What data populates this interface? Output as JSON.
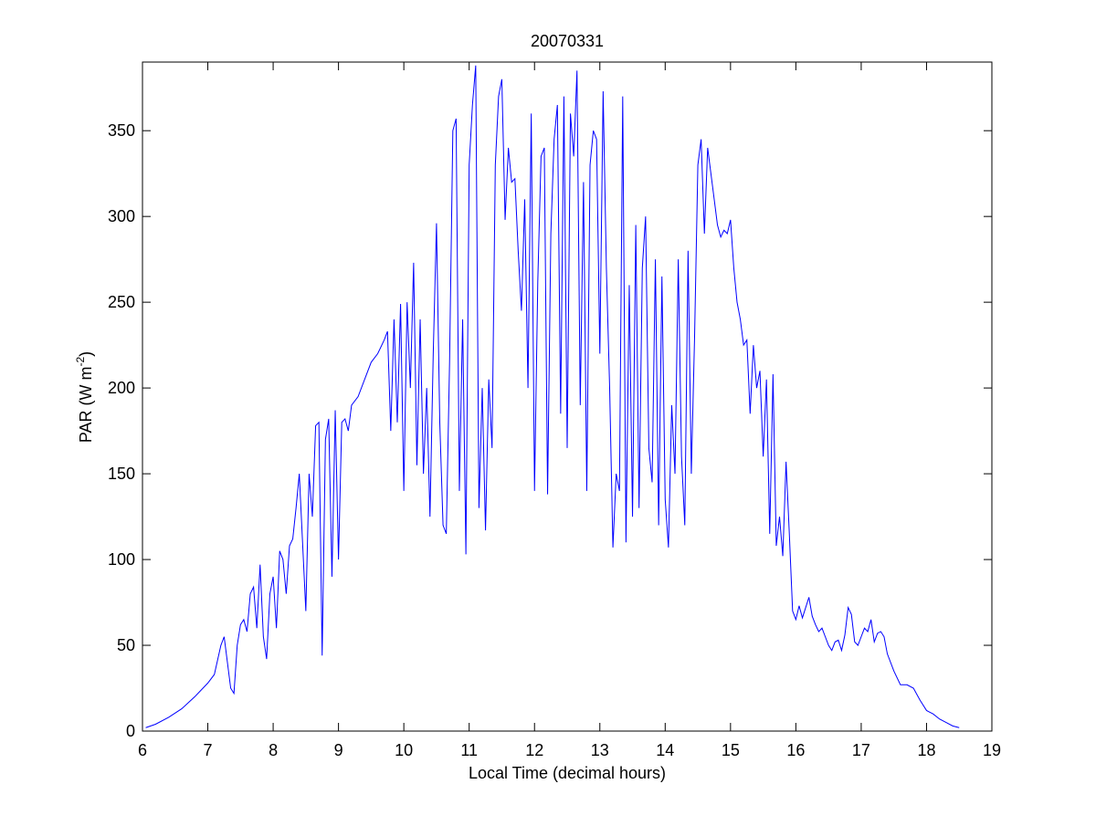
{
  "chart_data": {
    "type": "line",
    "title": "20070331",
    "x_label": "Local Time (decimal hours)",
    "y_label": [
      "PAR (W m",
      "-2",
      ")"
    ],
    "color": "#0000ff",
    "xlim": [
      6,
      19
    ],
    "ylim": [
      0,
      390
    ],
    "xticks": [
      6,
      7,
      8,
      9,
      10,
      11,
      12,
      13,
      14,
      15,
      16,
      17,
      18,
      19
    ],
    "yticks": [
      0,
      50,
      100,
      150,
      200,
      250,
      300,
      350
    ],
    "grid": false,
    "x": [
      6.05,
      6.2,
      6.4,
      6.6,
      6.8,
      7.0,
      7.1,
      7.2,
      7.25,
      7.3,
      7.35,
      7.4,
      7.45,
      7.5,
      7.55,
      7.6,
      7.65,
      7.7,
      7.75,
      7.8,
      7.85,
      7.9,
      7.95,
      8.0,
      8.05,
      8.1,
      8.15,
      8.2,
      8.25,
      8.3,
      8.35,
      8.4,
      8.45,
      8.5,
      8.55,
      8.6,
      8.65,
      8.7,
      8.75,
      8.8,
      8.85,
      8.9,
      8.95,
      9.0,
      9.05,
      9.1,
      9.15,
      9.2,
      9.3,
      9.4,
      9.5,
      9.6,
      9.7,
      9.75,
      9.8,
      9.85,
      9.9,
      9.95,
      10.0,
      10.05,
      10.1,
      10.15,
      10.2,
      10.25,
      10.3,
      10.35,
      10.4,
      10.45,
      10.5,
      10.55,
      10.6,
      10.65,
      10.7,
      10.75,
      10.8,
      10.85,
      10.9,
      10.95,
      11.0,
      11.05,
      11.1,
      11.15,
      11.2,
      11.25,
      11.3,
      11.35,
      11.4,
      11.45,
      11.5,
      11.55,
      11.6,
      11.65,
      11.7,
      11.75,
      11.8,
      11.85,
      11.9,
      11.95,
      12.0,
      12.05,
      12.1,
      12.15,
      12.2,
      12.25,
      12.3,
      12.35,
      12.4,
      12.45,
      12.5,
      12.55,
      12.6,
      12.65,
      12.7,
      12.75,
      12.8,
      12.85,
      12.9,
      12.95,
      13.0,
      13.05,
      13.1,
      13.15,
      13.2,
      13.25,
      13.3,
      13.35,
      13.4,
      13.45,
      13.5,
      13.55,
      13.6,
      13.65,
      13.7,
      13.75,
      13.8,
      13.85,
      13.9,
      13.95,
      14.0,
      14.05,
      14.1,
      14.15,
      14.2,
      14.25,
      14.3,
      14.35,
      14.4,
      14.45,
      14.5,
      14.55,
      14.6,
      14.65,
      14.7,
      14.75,
      14.8,
      14.85,
      14.9,
      14.95,
      15.0,
      15.05,
      15.1,
      15.15,
      15.2,
      15.25,
      15.3,
      15.35,
      15.4,
      15.45,
      15.5,
      15.55,
      15.6,
      15.65,
      15.7,
      15.75,
      15.8,
      15.85,
      15.9,
      15.95,
      16.0,
      16.05,
      16.1,
      16.15,
      16.2,
      16.25,
      16.3,
      16.35,
      16.4,
      16.45,
      16.5,
      16.55,
      16.6,
      16.65,
      16.7,
      16.75,
      16.8,
      16.85,
      16.9,
      16.95,
      17.0,
      17.05,
      17.1,
      17.15,
      17.2,
      17.25,
      17.3,
      17.35,
      17.4,
      17.5,
      17.6,
      17.7,
      17.8,
      17.9,
      18.0,
      18.1,
      18.2,
      18.3,
      18.4,
      18.5
    ],
    "values": [
      2,
      4,
      8,
      13,
      20,
      28,
      33,
      50,
      55,
      40,
      25,
      22,
      50,
      62,
      65,
      58,
      80,
      84,
      60,
      97,
      55,
      42,
      80,
      90,
      60,
      105,
      100,
      80,
      108,
      112,
      130,
      150,
      110,
      70,
      150,
      125,
      178,
      180,
      44,
      170,
      182,
      90,
      187,
      100,
      180,
      182,
      175,
      190,
      195,
      205,
      215,
      220,
      228,
      233,
      175,
      240,
      180,
      249,
      140,
      250,
      200,
      273,
      155,
      240,
      150,
      200,
      125,
      220,
      296,
      180,
      120,
      115,
      215,
      350,
      357,
      140,
      240,
      103,
      330,
      365,
      388,
      130,
      200,
      117,
      205,
      165,
      330,
      370,
      380,
      298,
      340,
      320,
      322,
      280,
      245,
      310,
      200,
      360,
      140,
      262,
      335,
      340,
      138,
      290,
      345,
      365,
      185,
      370,
      165,
      360,
      335,
      385,
      190,
      320,
      140,
      330,
      350,
      345,
      220,
      373,
      270,
      200,
      107,
      150,
      140,
      370,
      110,
      260,
      125,
      295,
      130,
      270,
      300,
      165,
      145,
      275,
      120,
      265,
      135,
      107,
      190,
      150,
      275,
      160,
      120,
      280,
      150,
      230,
      330,
      345,
      290,
      340,
      325,
      310,
      295,
      288,
      292,
      290,
      298,
      270,
      250,
      240,
      225,
      228,
      185,
      225,
      200,
      210,
      160,
      205,
      115,
      208,
      108,
      125,
      102,
      157,
      115,
      70,
      65,
      73,
      66,
      72,
      78,
      67,
      62,
      58,
      60,
      55,
      50,
      47,
      52,
      53,
      47,
      56,
      72,
      68,
      52,
      50,
      55,
      60,
      58,
      65,
      52,
      57,
      58,
      55,
      45,
      35,
      27,
      27,
      25,
      18,
      12,
      10,
      7,
      5,
      3,
      2
    ]
  }
}
